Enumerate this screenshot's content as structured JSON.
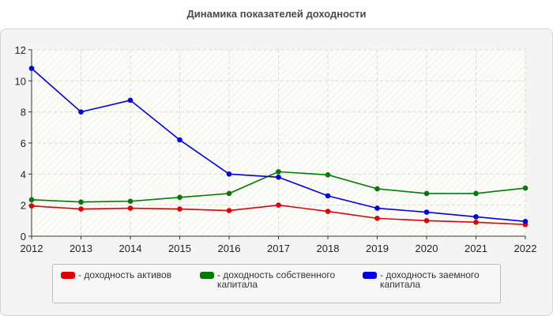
{
  "chart_data": {
    "type": "line",
    "title": "Динамика показателей доходности",
    "x": [
      "2012",
      "2013",
      "2014",
      "2015",
      "2016",
      "2017",
      "2018",
      "2019",
      "2020",
      "2021",
      "2022"
    ],
    "ylim": [
      0,
      12
    ],
    "yticks": [
      "0",
      "2",
      "4",
      "6",
      "8",
      "10",
      "12"
    ],
    "grid": true,
    "legend_position": "bottom",
    "series": [
      {
        "name": "- доходность активов",
        "color": "#e00000",
        "values": [
          1.95,
          1.75,
          1.8,
          1.75,
          1.65,
          2.0,
          1.6,
          1.15,
          1.0,
          0.9,
          0.75
        ]
      },
      {
        "name": "- доходность собственного капитала",
        "color": "#007a00",
        "values": [
          2.35,
          2.2,
          2.25,
          2.5,
          2.75,
          4.15,
          3.95,
          3.05,
          2.75,
          2.75,
          3.1
        ]
      },
      {
        "name": "- доходность заемного капитала",
        "color": "#0000e0",
        "values": [
          10.8,
          8.0,
          8.75,
          6.2,
          4.0,
          3.8,
          2.6,
          1.8,
          1.55,
          1.25,
          0.95
        ]
      }
    ]
  }
}
